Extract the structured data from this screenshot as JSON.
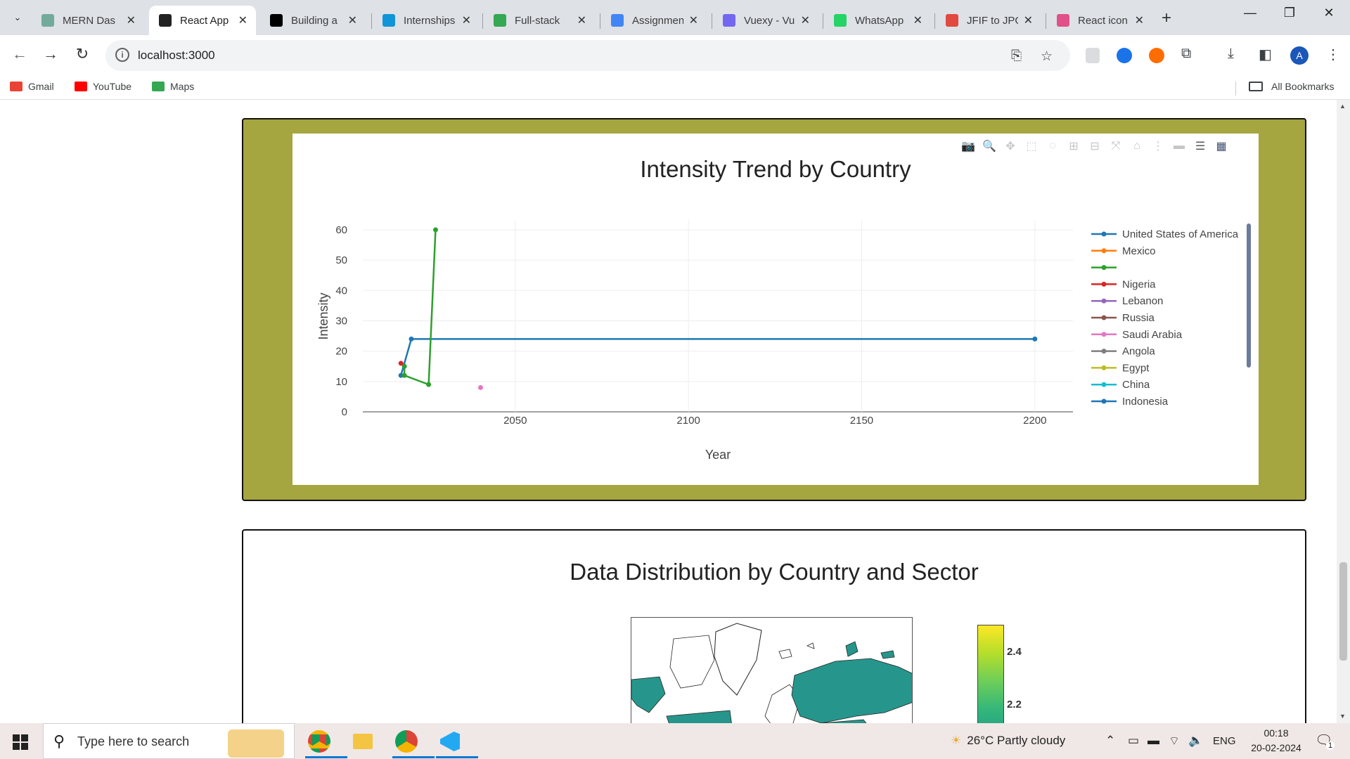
{
  "browser": {
    "tabs": [
      {
        "title": "MERN Das",
        "favicon": "chatgpt-icon",
        "color": "#74aa9c",
        "active": false
      },
      {
        "title": "React App",
        "favicon": "react-icon",
        "color": "#222222",
        "active": true
      },
      {
        "title": "Building a",
        "favicon": "dev-icon",
        "color": "#000000",
        "active": false
      },
      {
        "title": "Internships",
        "favicon": "internshala-icon",
        "color": "#1295d8",
        "active": false
      },
      {
        "title": "Full-stack",
        "favicon": "drive-icon",
        "color": "#34a853",
        "active": false
      },
      {
        "title": "Assignmen",
        "favicon": "docs-icon",
        "color": "#4285f4",
        "active": false
      },
      {
        "title": "Vuexy - Vu",
        "favicon": "vuexy-icon",
        "color": "#7367f0",
        "active": false
      },
      {
        "title": "WhatsApp",
        "favicon": "whatsapp-icon",
        "color": "#25d366",
        "active": false
      },
      {
        "title": "JFIF to JPG",
        "favicon": "cloud-icon",
        "color": "#e04a3f",
        "active": false
      },
      {
        "title": "React icon",
        "favicon": "react-icon",
        "color": "#e0518a",
        "active": false
      }
    ],
    "url": "localhost:3000",
    "bookmarks": [
      {
        "label": "Gmail",
        "icon": "gmail-icon",
        "color": "#ea4335"
      },
      {
        "label": "YouTube",
        "icon": "youtube-icon",
        "color": "#ff0000"
      },
      {
        "label": "Maps",
        "icon": "maps-icon",
        "color": "#34a853"
      }
    ],
    "all_bookmarks": "All Bookmarks",
    "profile_initial": "A"
  },
  "card1": {
    "background": "#a5a640",
    "chart_data": {
      "type": "line",
      "title": "Intensity Trend by Country",
      "xlabel": "Year",
      "ylabel": "Intensity",
      "xlim": [
        2006,
        2211
      ],
      "ylim": [
        0,
        63
      ],
      "xticks": [
        2050,
        2100,
        2150,
        2200
      ],
      "yticks": [
        0,
        10,
        20,
        30,
        40,
        50,
        60
      ],
      "grid": true,
      "legend_position": "right",
      "series": [
        {
          "name": "United States of America",
          "color": "#1f77b4",
          "points": [
            [
              2017,
              12
            ],
            [
              2020,
              24
            ],
            [
              2200,
              24
            ]
          ]
        },
        {
          "name": "Mexico",
          "color": "#ff7f0e",
          "points": []
        },
        {
          "name": "",
          "color": "#2ca02c",
          "points": [
            [
              2018,
              15
            ],
            [
              2018,
              12
            ],
            [
              2025,
              9
            ],
            [
              2027,
              60
            ]
          ]
        },
        {
          "name": "Nigeria",
          "color": "#d62728",
          "points": [
            [
              2017,
              16
            ]
          ]
        },
        {
          "name": "Lebanon",
          "color": "#9467bd",
          "points": []
        },
        {
          "name": "Russia",
          "color": "#8c564b",
          "points": []
        },
        {
          "name": "Saudi Arabia",
          "color": "#e377c2",
          "points": [
            [
              2040,
              8
            ]
          ]
        },
        {
          "name": "Angola",
          "color": "#7f7f7f",
          "points": []
        },
        {
          "name": "Egypt",
          "color": "#bcbd22",
          "points": []
        },
        {
          "name": "China",
          "color": "#17becf",
          "points": []
        },
        {
          "name": "Indonesia",
          "color": "#1f77b4",
          "points": []
        }
      ]
    }
  },
  "card2": {
    "title": "Data Distribution by Country and Sector",
    "colorbar_ticks": [
      "2.4",
      "2.2"
    ]
  },
  "taskbar": {
    "search_placeholder": "Type here to search",
    "weather": "26°C  Partly cloudy",
    "lang": "ENG",
    "time": "00:18",
    "date": "20-02-2024",
    "notifications": "1"
  }
}
